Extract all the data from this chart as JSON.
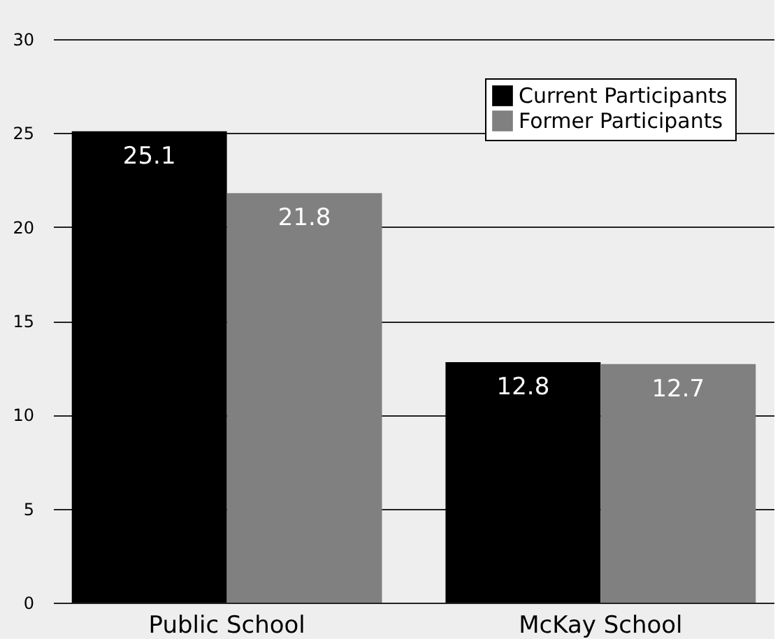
{
  "chart_data": {
    "type": "bar",
    "categories": [
      "Public School",
      "McKay School"
    ],
    "series": [
      {
        "name": "Current Participants",
        "color": "#000000",
        "values": [
          25.1,
          12.8
        ]
      },
      {
        "name": "Former Participants",
        "color": "#808080",
        "values": [
          21.8,
          12.7
        ]
      }
    ],
    "ylim": [
      0,
      30
    ],
    "yticks": [
      0,
      5,
      10,
      15,
      20,
      25,
      30
    ],
    "grid": "y",
    "legend": "top right",
    "data_labels": true
  }
}
